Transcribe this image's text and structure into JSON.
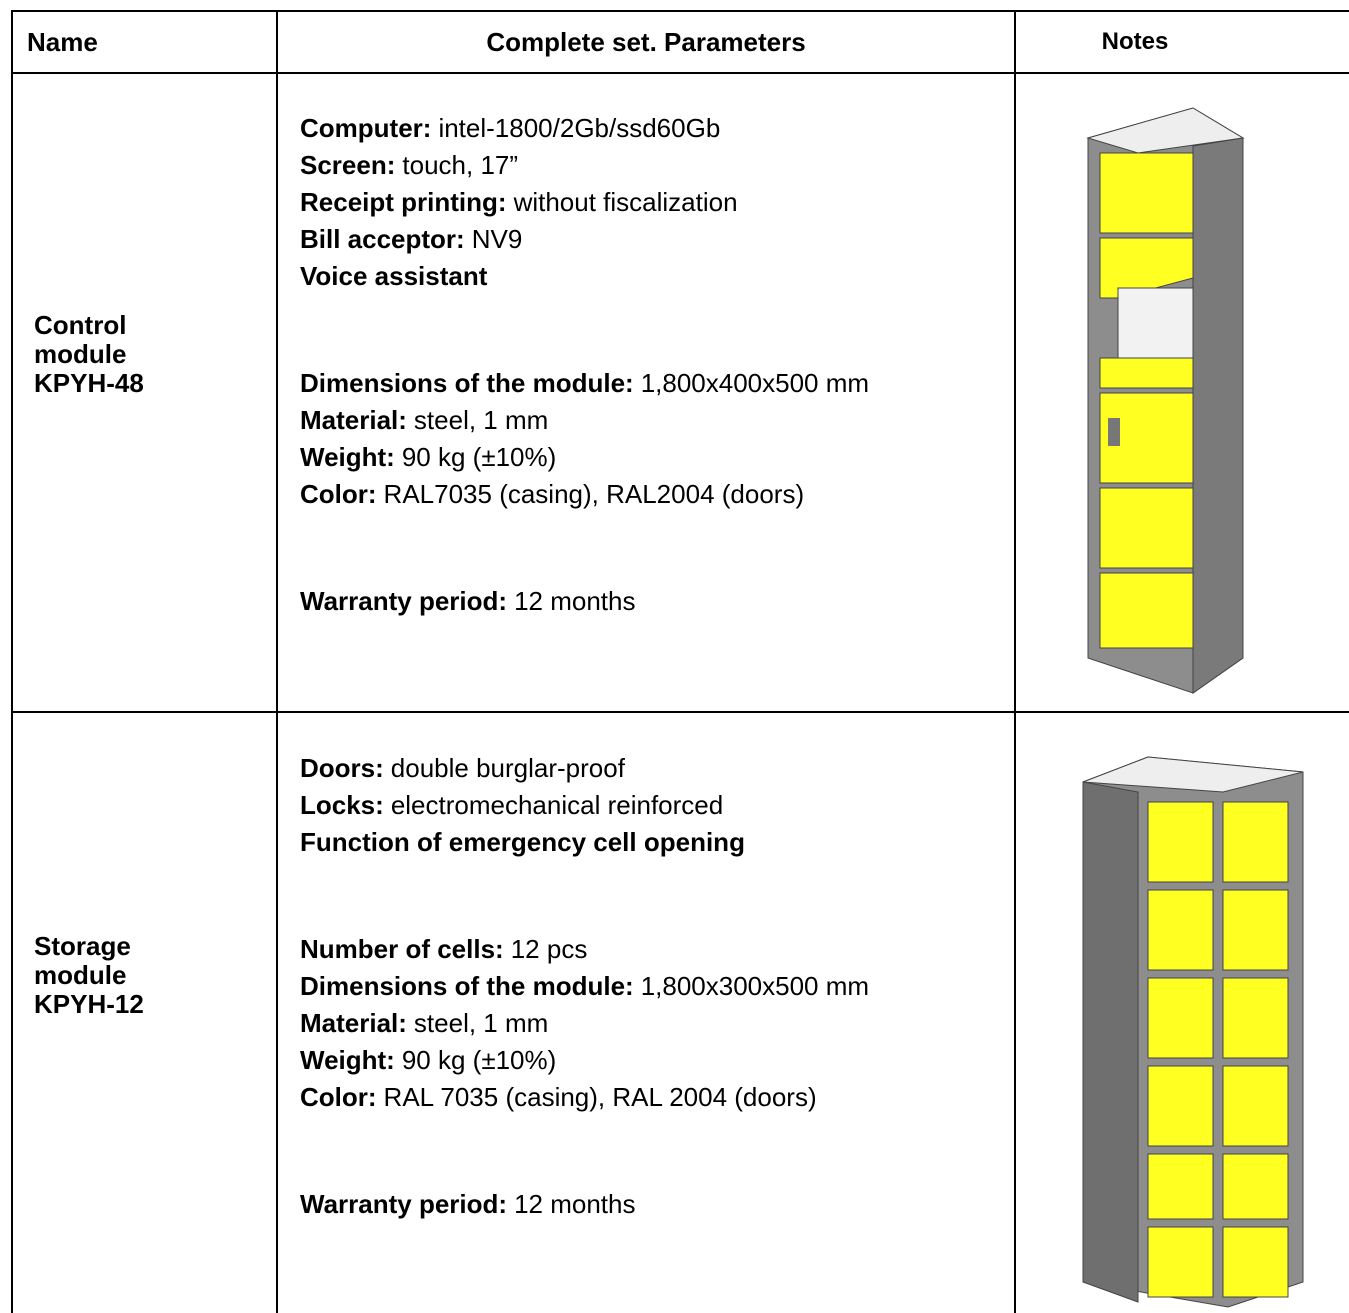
{
  "table": {
    "header": [
      "Name",
      "Complete set. Parameters",
      "Notes"
    ],
    "rows": [
      {
        "name_lines": [
          "Control",
          "module",
          "KPYH-48"
        ],
        "params": [
          [
            {
              "label": "Computer:",
              "value": "intel-1800/2Gb/ssd60Gb"
            },
            {
              "label": "Screen:",
              "value": "touch, 17”"
            },
            {
              "label": "Receipt printing:",
              "value": "without fiscalization"
            },
            {
              "label": "Bill acceptor:",
              "value": "NV9"
            },
            {
              "label": "Voice assistant"
            }
          ],
          [
            {
              "label": "Dimensions of the module:",
              "value": "1,800x400x500 mm"
            },
            {
              "label": "Material:",
              "value": "steel, 1 mm"
            },
            {
              "label": "Weight:",
              "value": "90 kg (±10%)"
            },
            {
              "label": "Color:",
              "value": "RAL7035 (casing), RAL2004 (doors)"
            }
          ],
          [
            {
              "label": "Warranty period:",
              "value": "12 months"
            }
          ]
        ]
      },
      {
        "name_lines": [
          "Storage",
          "module",
          "KPYH-12"
        ],
        "params": [
          [
            {
              "label": "Doors:",
              "value": "double burglar-proof"
            },
            {
              "label": "Locks:",
              "value": "electromechanical reinforced"
            },
            {
              "label": "Function of emergency cell opening"
            }
          ],
          [
            {
              "label": "Number of cells:",
              "value": "12 pcs"
            },
            {
              "label": "Dimensions of the module:",
              "value": "1,800x300x500 mm"
            },
            {
              "label": "Material:",
              "value": "steel, 1 mm"
            },
            {
              "label": "Weight:",
              "value": "90 kg (±10%)"
            },
            {
              "label": "Color:",
              "value": "RAL 7035 (casing), RAL 2004 (doors)"
            }
          ],
          [
            {
              "label": "Warranty period:",
              "value": "12 months"
            }
          ]
        ]
      }
    ]
  }
}
